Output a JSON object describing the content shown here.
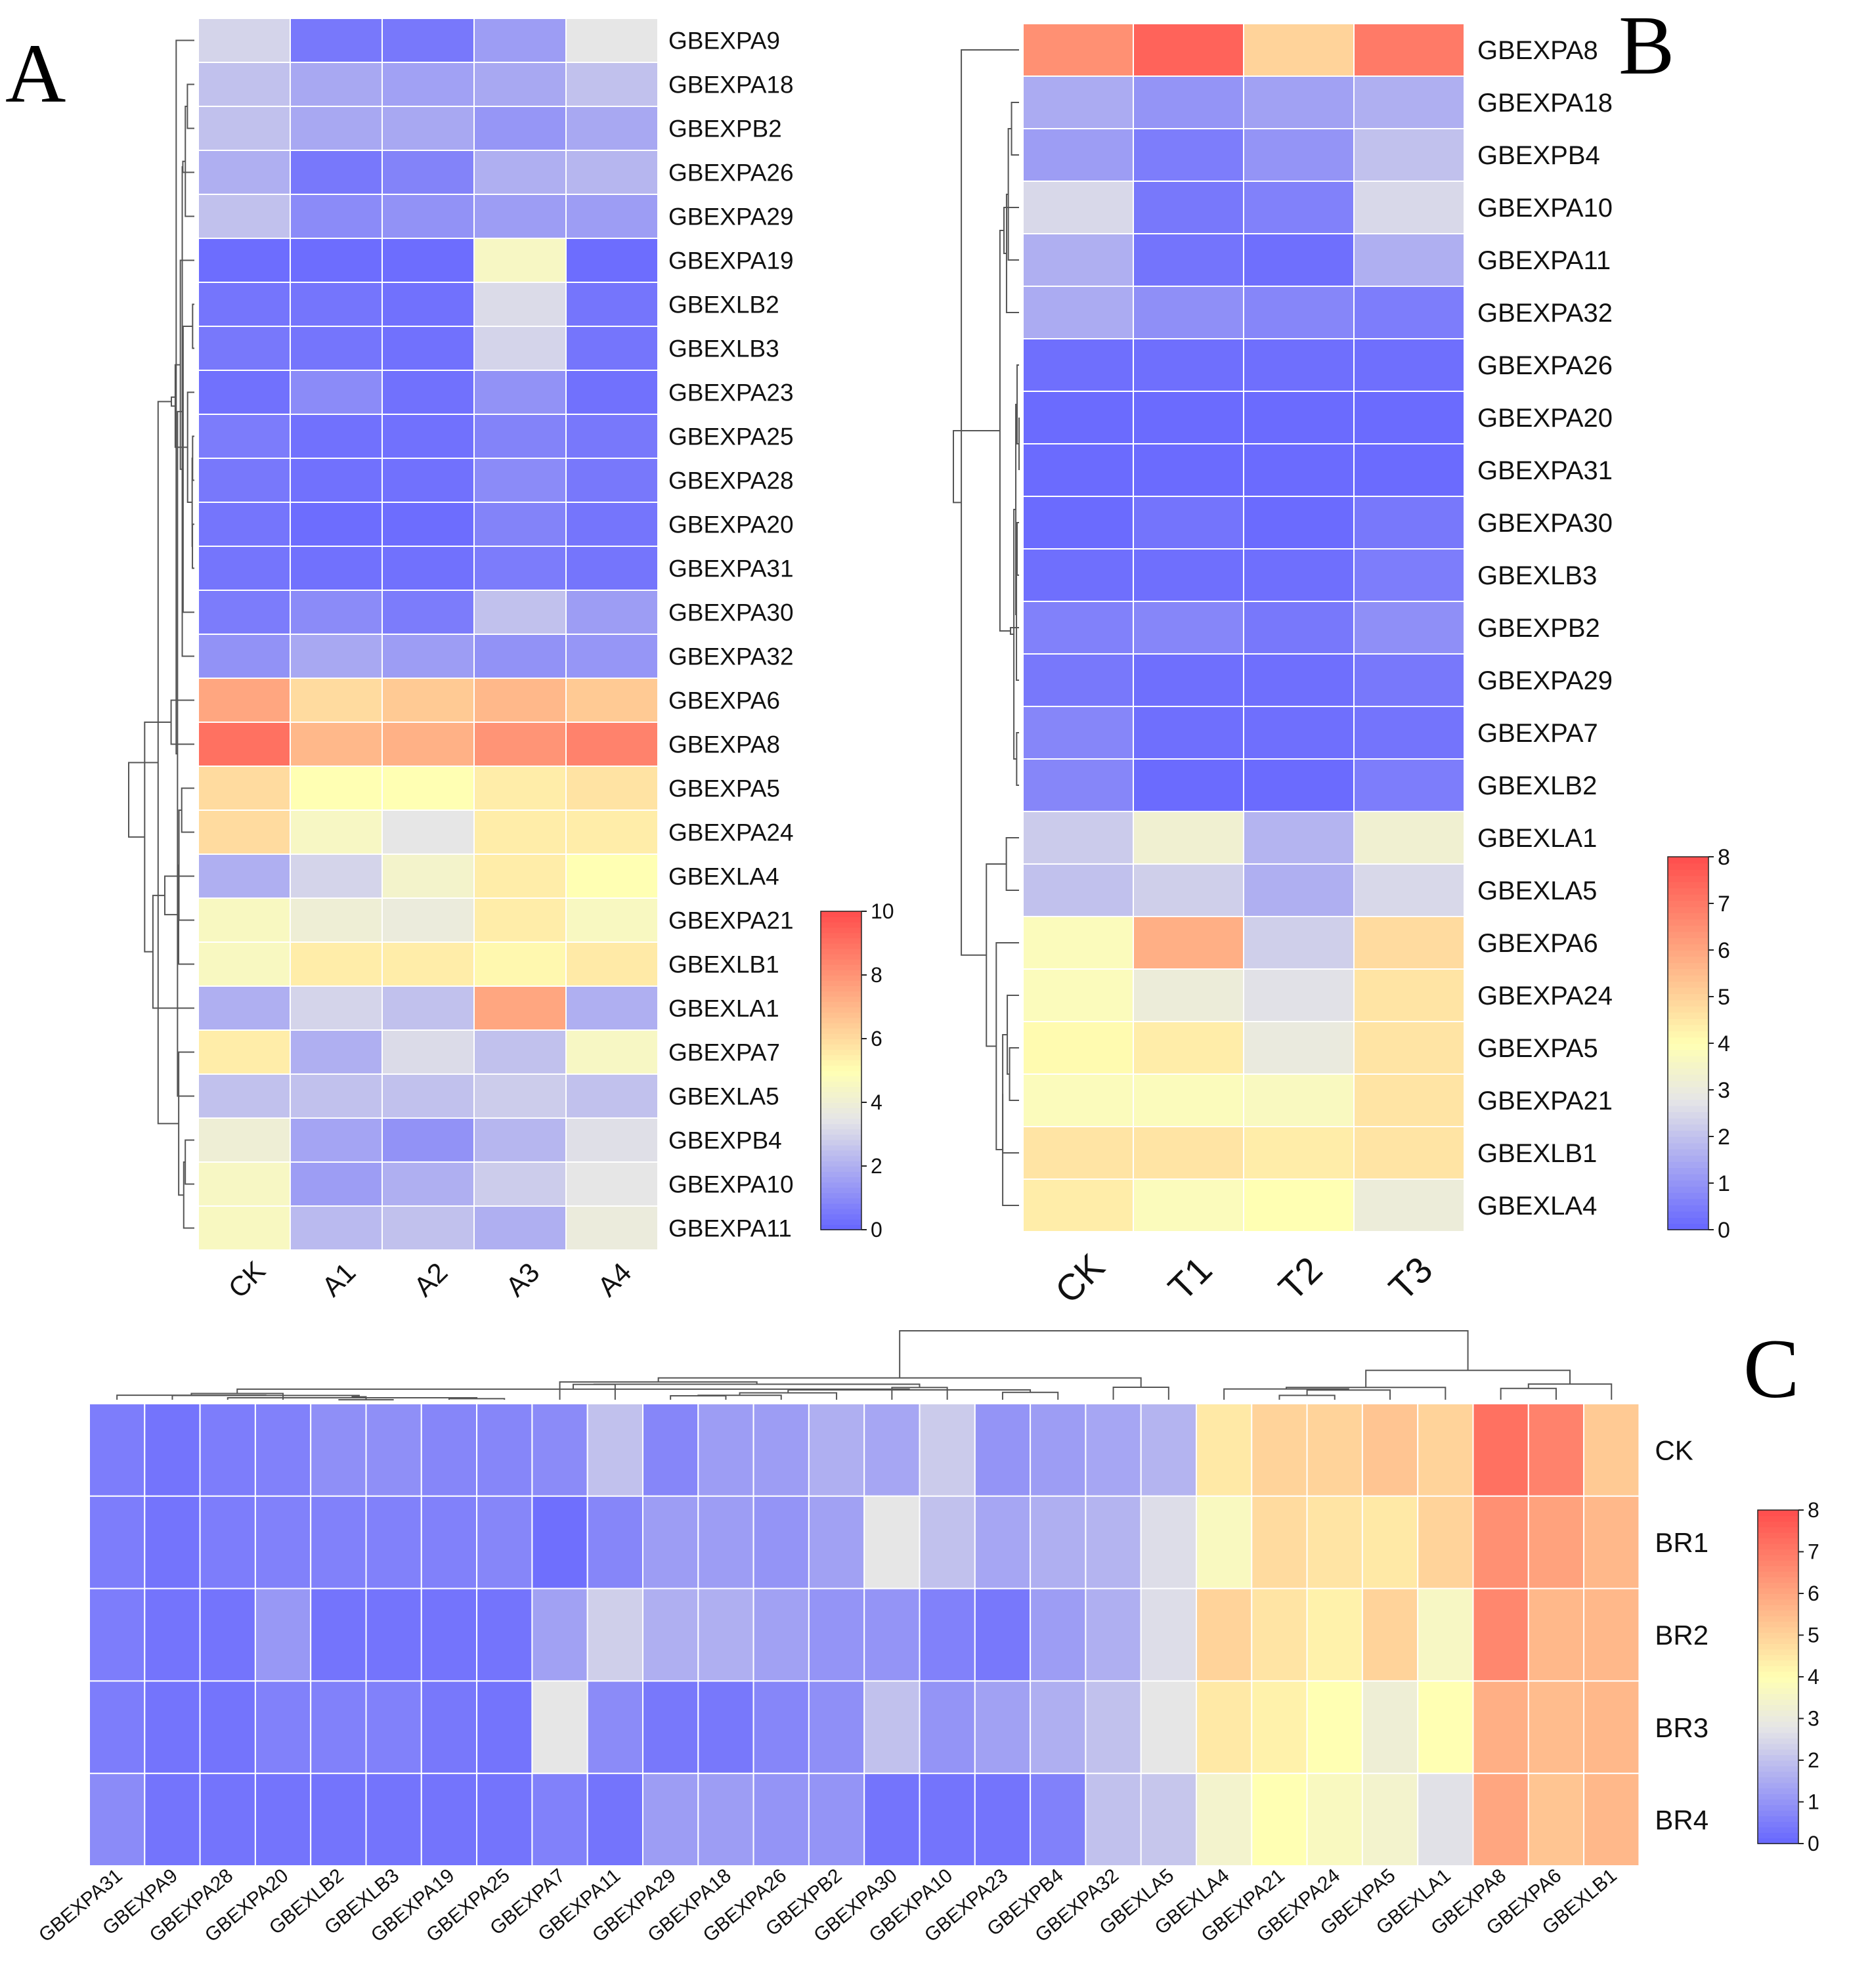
{
  "chart_data": [
    {
      "type": "heatmap",
      "panel": "A",
      "columns": [
        "CK",
        "A1",
        "A2",
        "A3",
        "A4"
      ],
      "rows": [
        "GBEXPA9",
        "GBEXPA18",
        "GBEXPB2",
        "GBEXPA26",
        "GBEXPA29",
        "GBEXPA19",
        "GBEXLB2",
        "GBEXLB3",
        "GBEXPA23",
        "GBEXPA25",
        "GBEXPA28",
        "GBEXPA20",
        "GBEXPA31",
        "GBEXPA30",
        "GBEXPA32",
        "GBEXPA6",
        "GBEXPA8",
        "GBEXPA5",
        "GBEXPA24",
        "GBEXLA4",
        "GBEXPA21",
        "GBEXLB1",
        "GBEXLA1",
        "GBEXPA7",
        "GBEXLA5",
        "GBEXPB4",
        "GBEXPA10",
        "GBEXPA11"
      ],
      "values": [
        [
          3.0,
          0.5,
          0.5,
          1.5,
          3.5
        ],
        [
          2.5,
          1.8,
          1.6,
          1.8,
          2.5
        ],
        [
          2.5,
          1.8,
          1.8,
          1.3,
          1.8
        ],
        [
          2.0,
          0.5,
          0.8,
          2.0,
          2.2
        ],
        [
          2.5,
          1.0,
          1.2,
          1.5,
          1.5
        ],
        [
          0.2,
          0.2,
          0.2,
          4.5,
          0.2
        ],
        [
          0.4,
          0.4,
          0.3,
          3.2,
          0.4
        ],
        [
          0.5,
          0.4,
          0.3,
          3.0,
          0.4
        ],
        [
          0.3,
          1.0,
          0.3,
          1.2,
          0.3
        ],
        [
          0.6,
          0.3,
          0.3,
          0.8,
          0.5
        ],
        [
          0.5,
          0.3,
          0.3,
          1.0,
          0.5
        ],
        [
          0.4,
          0.2,
          0.2,
          0.8,
          0.4
        ],
        [
          0.4,
          0.3,
          0.3,
          0.6,
          0.4
        ],
        [
          0.6,
          1.0,
          0.6,
          2.5,
          1.5
        ],
        [
          1.2,
          1.8,
          1.5,
          1.2,
          1.3
        ],
        [
          7.5,
          6.0,
          6.5,
          7.0,
          6.5
        ],
        [
          9.0,
          7.0,
          7.2,
          8.0,
          8.5
        ],
        [
          6.0,
          5.0,
          5.0,
          5.5,
          5.8
        ],
        [
          6.0,
          4.5,
          3.5,
          5.5,
          5.5
        ],
        [
          2.0,
          3.0,
          4.3,
          5.5,
          5.0
        ],
        [
          4.6,
          4.0,
          3.8,
          5.5,
          4.6
        ],
        [
          4.6,
          5.5,
          5.5,
          5.2,
          5.6
        ],
        [
          2.0,
          3.0,
          2.5,
          7.5,
          2.0
        ],
        [
          5.5,
          2.0,
          3.2,
          2.5,
          4.5
        ],
        [
          2.5,
          2.5,
          2.5,
          2.8,
          2.5
        ],
        [
          4.0,
          1.7,
          1.2,
          2.2,
          3.3
        ],
        [
          4.5,
          1.5,
          2.0,
          2.8,
          3.5
        ],
        [
          4.6,
          2.3,
          2.5,
          2.0,
          3.8
        ]
      ],
      "colorbar": {
        "min": 0,
        "max": 10,
        "ticks": [
          "0",
          "2",
          "4",
          "6",
          "8",
          "10"
        ]
      }
    },
    {
      "type": "heatmap",
      "panel": "B",
      "columns": [
        "CK",
        "T1",
        "T2",
        "T3"
      ],
      "rows": [
        "GBEXPA8",
        "GBEXPA18",
        "GBEXPB4",
        "GBEXPA10",
        "GBEXPA11",
        "GBEXPA32",
        "GBEXPA26",
        "GBEXPA20",
        "GBEXPA31",
        "GBEXPA30",
        "GBEXLB3",
        "GBEXPB2",
        "GBEXPA29",
        "GBEXPA7",
        "GBEXLB2",
        "GBEXLA1",
        "GBEXLA5",
        "GBEXPA6",
        "GBEXPA24",
        "GBEXPA5",
        "GBEXPA21",
        "GBEXLB1",
        "GBEXLA4"
      ],
      "values": [
        [
          6.5,
          7.5,
          5.0,
          7.0
        ],
        [
          1.5,
          1.0,
          1.3,
          1.6
        ],
        [
          1.2,
          0.5,
          1.0,
          2.0
        ],
        [
          2.5,
          0.4,
          0.6,
          2.5
        ],
        [
          1.6,
          0.3,
          0.2,
          1.6
        ],
        [
          1.5,
          0.9,
          0.7,
          0.5
        ],
        [
          0.2,
          0.2,
          0.2,
          0.2
        ],
        [
          0.1,
          0.1,
          0.1,
          0.1
        ],
        [
          0.1,
          0.1,
          0.1,
          0.1
        ],
        [
          0.1,
          0.3,
          0.1,
          0.4
        ],
        [
          0.2,
          0.2,
          0.2,
          0.5
        ],
        [
          0.6,
          0.7,
          0.4,
          0.9
        ],
        [
          0.4,
          0.2,
          0.2,
          0.4
        ],
        [
          0.7,
          0.2,
          0.2,
          0.3
        ],
        [
          0.7,
          0.1,
          0.1,
          0.5
        ],
        [
          2.2,
          3.3,
          1.7,
          3.3
        ],
        [
          2.0,
          2.3,
          1.6,
          2.5
        ],
        [
          3.8,
          5.8,
          2.3,
          4.8
        ],
        [
          3.8,
          3.1,
          2.7,
          4.6
        ],
        [
          4.1,
          4.4,
          3.0,
          4.6
        ],
        [
          3.8,
          3.8,
          3.7,
          4.6
        ],
        [
          4.6,
          4.6,
          4.4,
          4.6
        ],
        [
          4.4,
          3.8,
          4.0,
          3.1
        ]
      ],
      "colorbar": {
        "min": 0,
        "max": 8,
        "ticks": [
          "0",
          "1",
          "2",
          "3",
          "4",
          "5",
          "6",
          "7",
          "8"
        ]
      }
    },
    {
      "type": "heatmap",
      "panel": "C",
      "columns": [
        "GBEXPA31",
        "GBEXPA9",
        "GBEXPA28",
        "GBEXPA20",
        "GBEXLB2",
        "GBEXLB3",
        "GBEXPA19",
        "GBEXPA25",
        "GBEXPA7",
        "GBEXPA11",
        "GBEXPA29",
        "GBEXPA18",
        "GBEXPA26",
        "GBEXPB2",
        "GBEXPA30",
        "GBEXPA10",
        "GBEXPA23",
        "GBEXPB4",
        "GBEXPA32",
        "GBEXLA5",
        "GBEXLA4",
        "GBEXPA21",
        "GBEXPA24",
        "GBEXPA5",
        "GBEXLA1",
        "GBEXPA8",
        "GBEXPA6",
        "GBEXLB1"
      ],
      "rows": [
        "CK",
        "BR1",
        "BR2",
        "BR3",
        "BR4"
      ],
      "values": [
        [
          0.5,
          0.3,
          0.5,
          0.6,
          0.9,
          0.9,
          0.7,
          0.7,
          0.8,
          2.0,
          0.7,
          1.2,
          1.2,
          1.6,
          1.4,
          2.2,
          1.0,
          1.2,
          1.4,
          1.7,
          4.5,
          5.0,
          5.0,
          5.3,
          5.0,
          7.2,
          6.8,
          5.2
        ],
        [
          0.5,
          0.3,
          0.5,
          0.6,
          0.6,
          0.6,
          0.6,
          0.7,
          0.2,
          0.7,
          1.2,
          1.2,
          1.0,
          1.3,
          2.8,
          2.0,
          1.4,
          1.6,
          1.7,
          2.6,
          3.7,
          4.8,
          4.6,
          4.5,
          5.0,
          6.5,
          6.1,
          5.6
        ],
        [
          0.5,
          0.3,
          0.3,
          1.1,
          0.3,
          0.3,
          0.3,
          0.3,
          1.3,
          2.3,
          1.6,
          1.6,
          1.3,
          1.0,
          1.0,
          0.6,
          0.4,
          1.2,
          1.6,
          2.6,
          5.0,
          4.6,
          4.3,
          5.0,
          3.6,
          6.7,
          5.6,
          5.6
        ],
        [
          0.5,
          0.3,
          0.3,
          0.6,
          0.6,
          0.6,
          0.4,
          0.3,
          2.8,
          0.8,
          0.4,
          0.4,
          0.7,
          0.9,
          2.0,
          1.0,
          1.3,
          1.6,
          2.0,
          2.8,
          4.5,
          4.3,
          4.0,
          3.2,
          4.0,
          5.8,
          5.5,
          5.6
        ],
        [
          0.8,
          0.3,
          0.3,
          0.3,
          0.3,
          0.3,
          0.3,
          0.3,
          0.6,
          0.3,
          1.2,
          1.2,
          1.0,
          1.0,
          0.3,
          0.3,
          0.3,
          0.6,
          2.0,
          2.1,
          3.4,
          4.0,
          3.7,
          3.4,
          2.7,
          6.0,
          5.3,
          5.6
        ]
      ],
      "colorbar": {
        "min": 0,
        "max": 8,
        "ticks": [
          "0",
          "1",
          "2",
          "3",
          "4",
          "5",
          "6",
          "7",
          "8"
        ]
      }
    }
  ],
  "panel_labels": {
    "a": "A",
    "b": "B",
    "c": "C"
  },
  "colors": {
    "low": "#6666ff",
    "mid": "#e6e6e6",
    "high_mid": "#ffffb3",
    "high": "#ff4d4d"
  }
}
